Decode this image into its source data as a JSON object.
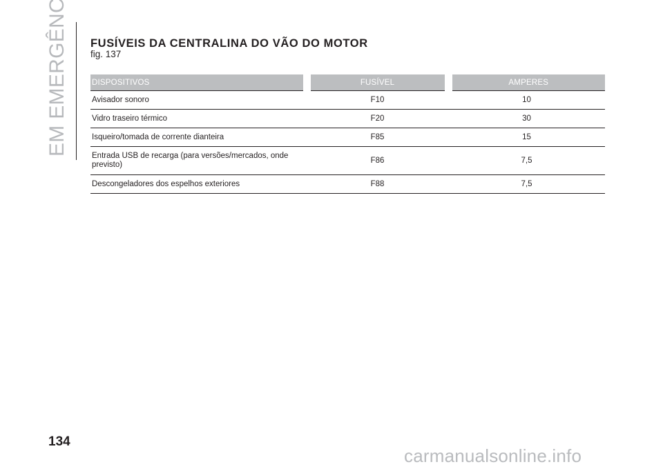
{
  "sidebar": {
    "chapter": "EM EMERGÊNCIA"
  },
  "header": {
    "title": "FUSÍVEIS DA CENTRALINA DO VÃO DO MOTOR",
    "figure_ref": "fig. 137"
  },
  "table": {
    "headers": [
      "DISPOSITIVOS",
      "FUSÍVEL",
      "AMPERES"
    ],
    "rows": [
      {
        "device": "Avisador sonoro",
        "fuse": "F10",
        "amperes": "10"
      },
      {
        "device": "Vidro traseiro térmico",
        "fuse": "F20",
        "amperes": "30"
      },
      {
        "device": "Isqueiro/tomada de corrente dianteira",
        "fuse": "F85",
        "amperes": "15"
      },
      {
        "device": "Entrada USB de recarga (para versões/mercados, onde previsto)",
        "fuse": "F86",
        "amperes": "7,5"
      },
      {
        "device": "Descongeladores dos espelhos exteriores",
        "fuse": "F88",
        "amperes": "7,5"
      }
    ]
  },
  "footer": {
    "page_number": "134"
  },
  "watermark": "carmanualsonline.info"
}
